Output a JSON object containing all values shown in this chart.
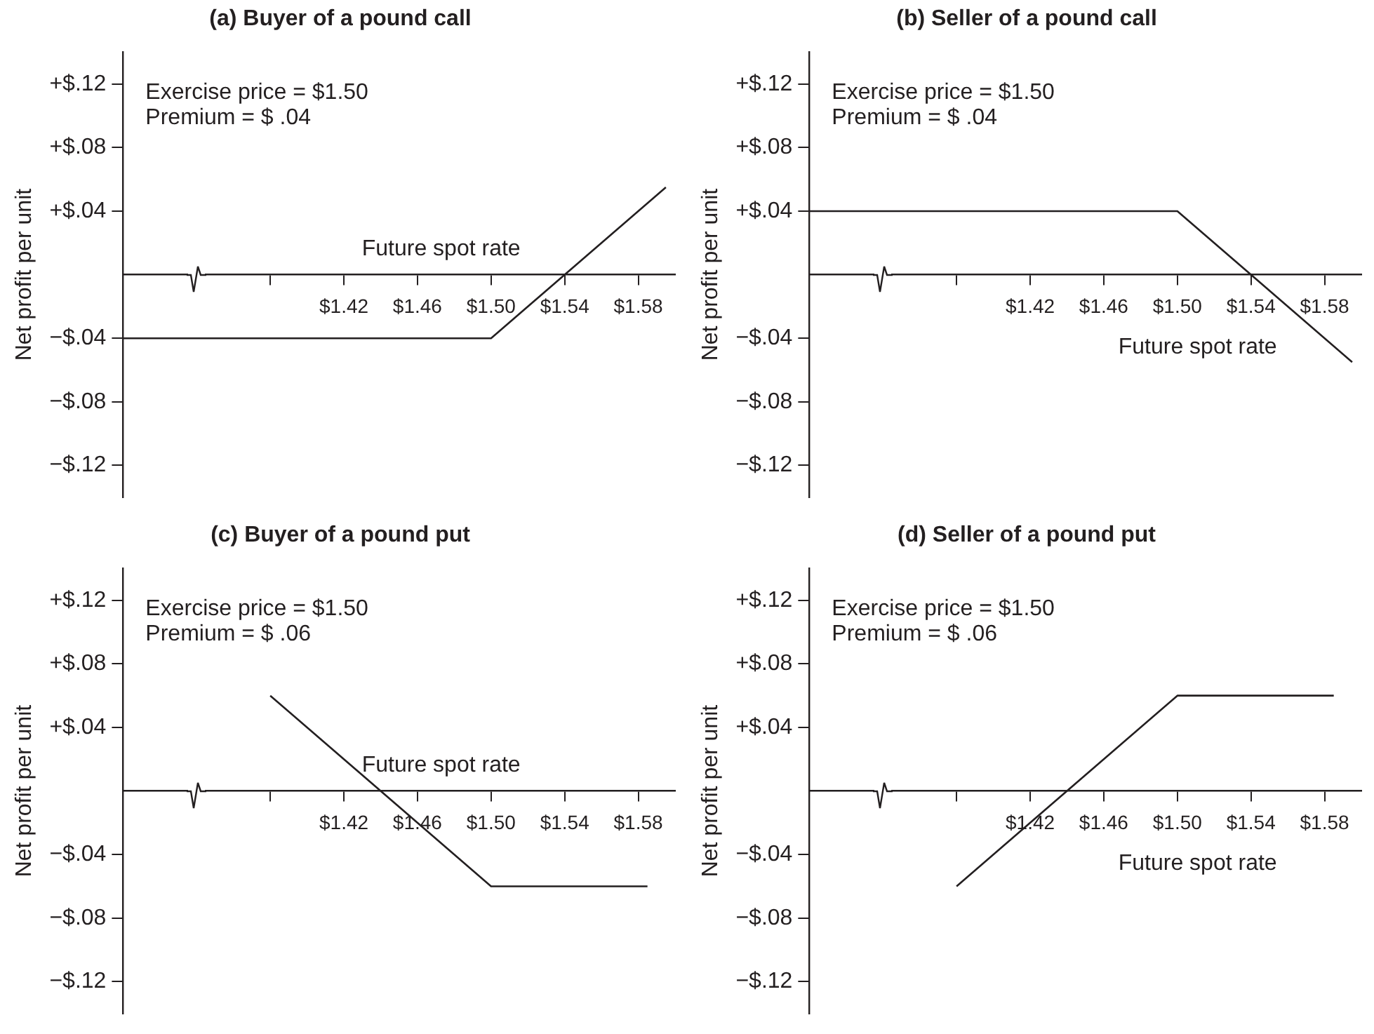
{
  "chart_data": [
    {
      "type": "line",
      "title": "(a) Buyer of a pound call",
      "xlabel": "Future spot rate",
      "ylabel": "Net profit per unit",
      "annotations": [
        "Exercise price = $1.50",
        "Premium = $ .04"
      ],
      "xlim": [
        1.3,
        1.6
      ],
      "xticks": [
        {
          "value": 1.38,
          "label": null
        },
        {
          "value": 1.42,
          "label": "$1.42"
        },
        {
          "value": 1.46,
          "label": "$1.46"
        },
        {
          "value": 1.5,
          "label": "$1.50"
        },
        {
          "value": 1.54,
          "label": "$1.54"
        },
        {
          "value": 1.58,
          "label": "$1.58"
        }
      ],
      "ylim": [
        -0.14,
        0.14
      ],
      "yticks": [
        {
          "value": 0.12,
          "label": "+$.12"
        },
        {
          "value": 0.08,
          "label": "+$.08"
        },
        {
          "value": 0.04,
          "label": "+$.04"
        },
        {
          "value": -0.04,
          "label": "−$.04"
        },
        {
          "value": -0.08,
          "label": "−$.08"
        },
        {
          "value": -0.12,
          "label": "−$.12"
        }
      ],
      "grid": false,
      "legend": false,
      "marker": "none",
      "line_style": "solid",
      "series": [
        {
          "color": "#231f20",
          "x": [
            1.3,
            1.5,
            1.595
          ],
          "values": [
            -0.04,
            -0.04,
            0.055
          ]
        }
      ]
    },
    {
      "type": "line",
      "title": "(b) Seller of a pound call",
      "xlabel": "Future spot rate",
      "ylabel": "Net profit per unit",
      "annotations": [
        "Exercise price = $1.50",
        "Premium = $ .04"
      ],
      "xlim": [
        1.3,
        1.6
      ],
      "xticks": [
        {
          "value": 1.38,
          "label": null
        },
        {
          "value": 1.42,
          "label": "$1.42"
        },
        {
          "value": 1.46,
          "label": "$1.46"
        },
        {
          "value": 1.5,
          "label": "$1.50"
        },
        {
          "value": 1.54,
          "label": "$1.54"
        },
        {
          "value": 1.58,
          "label": "$1.58"
        }
      ],
      "ylim": [
        -0.14,
        0.14
      ],
      "yticks": [
        {
          "value": 0.12,
          "label": "+$.12"
        },
        {
          "value": 0.08,
          "label": "+$.08"
        },
        {
          "value": 0.04,
          "label": "+$.04"
        },
        {
          "value": -0.04,
          "label": "−$.04"
        },
        {
          "value": -0.08,
          "label": "−$.08"
        },
        {
          "value": -0.12,
          "label": "−$.12"
        }
      ],
      "grid": false,
      "legend": false,
      "marker": "none",
      "line_style": "solid",
      "series": [
        {
          "color": "#231f20",
          "x": [
            1.3,
            1.5,
            1.595
          ],
          "values": [
            0.04,
            0.04,
            -0.055
          ]
        }
      ]
    },
    {
      "type": "line",
      "title": "(c) Buyer of a pound put",
      "xlabel": "Future spot rate",
      "ylabel": "Net profit per unit",
      "annotations": [
        "Exercise price = $1.50",
        "Premium = $ .06"
      ],
      "xlim": [
        1.3,
        1.6
      ],
      "xticks": [
        {
          "value": 1.38,
          "label": null
        },
        {
          "value": 1.42,
          "label": "$1.42"
        },
        {
          "value": 1.46,
          "label": "$1.46"
        },
        {
          "value": 1.5,
          "label": "$1.50"
        },
        {
          "value": 1.54,
          "label": "$1.54"
        },
        {
          "value": 1.58,
          "label": "$1.58"
        }
      ],
      "ylim": [
        -0.14,
        0.14
      ],
      "yticks": [
        {
          "value": 0.12,
          "label": "+$.12"
        },
        {
          "value": 0.08,
          "label": "+$.08"
        },
        {
          "value": 0.04,
          "label": "+$.04"
        },
        {
          "value": -0.04,
          "label": "−$.04"
        },
        {
          "value": -0.08,
          "label": "−$.08"
        },
        {
          "value": -0.12,
          "label": "−$.12"
        }
      ],
      "grid": false,
      "legend": false,
      "marker": "none",
      "line_style": "solid",
      "series": [
        {
          "color": "#231f20",
          "x": [
            1.38,
            1.5,
            1.585
          ],
          "values": [
            0.06,
            -0.06,
            -0.06
          ]
        }
      ]
    },
    {
      "type": "line",
      "title": "(d) Seller of a pound put",
      "xlabel": "Future spot rate",
      "ylabel": "Net profit per unit",
      "annotations": [
        "Exercise price = $1.50",
        "Premium = $ .06"
      ],
      "xlim": [
        1.3,
        1.6
      ],
      "xticks": [
        {
          "value": 1.38,
          "label": null
        },
        {
          "value": 1.42,
          "label": "$1.42"
        },
        {
          "value": 1.46,
          "label": "$1.46"
        },
        {
          "value": 1.5,
          "label": "$1.50"
        },
        {
          "value": 1.54,
          "label": "$1.54"
        },
        {
          "value": 1.58,
          "label": "$1.58"
        }
      ],
      "ylim": [
        -0.14,
        0.14
      ],
      "yticks": [
        {
          "value": 0.12,
          "label": "+$.12"
        },
        {
          "value": 0.08,
          "label": "+$.08"
        },
        {
          "value": 0.04,
          "label": "+$.04"
        },
        {
          "value": -0.04,
          "label": "−$.04"
        },
        {
          "value": -0.08,
          "label": "−$.08"
        },
        {
          "value": -0.12,
          "label": "−$.12"
        }
      ],
      "grid": false,
      "legend": false,
      "marker": "none",
      "line_style": "solid",
      "series": [
        {
          "color": "#231f20",
          "x": [
            1.38,
            1.5,
            1.585
          ],
          "values": [
            -0.06,
            0.06,
            0.06
          ]
        }
      ]
    }
  ]
}
